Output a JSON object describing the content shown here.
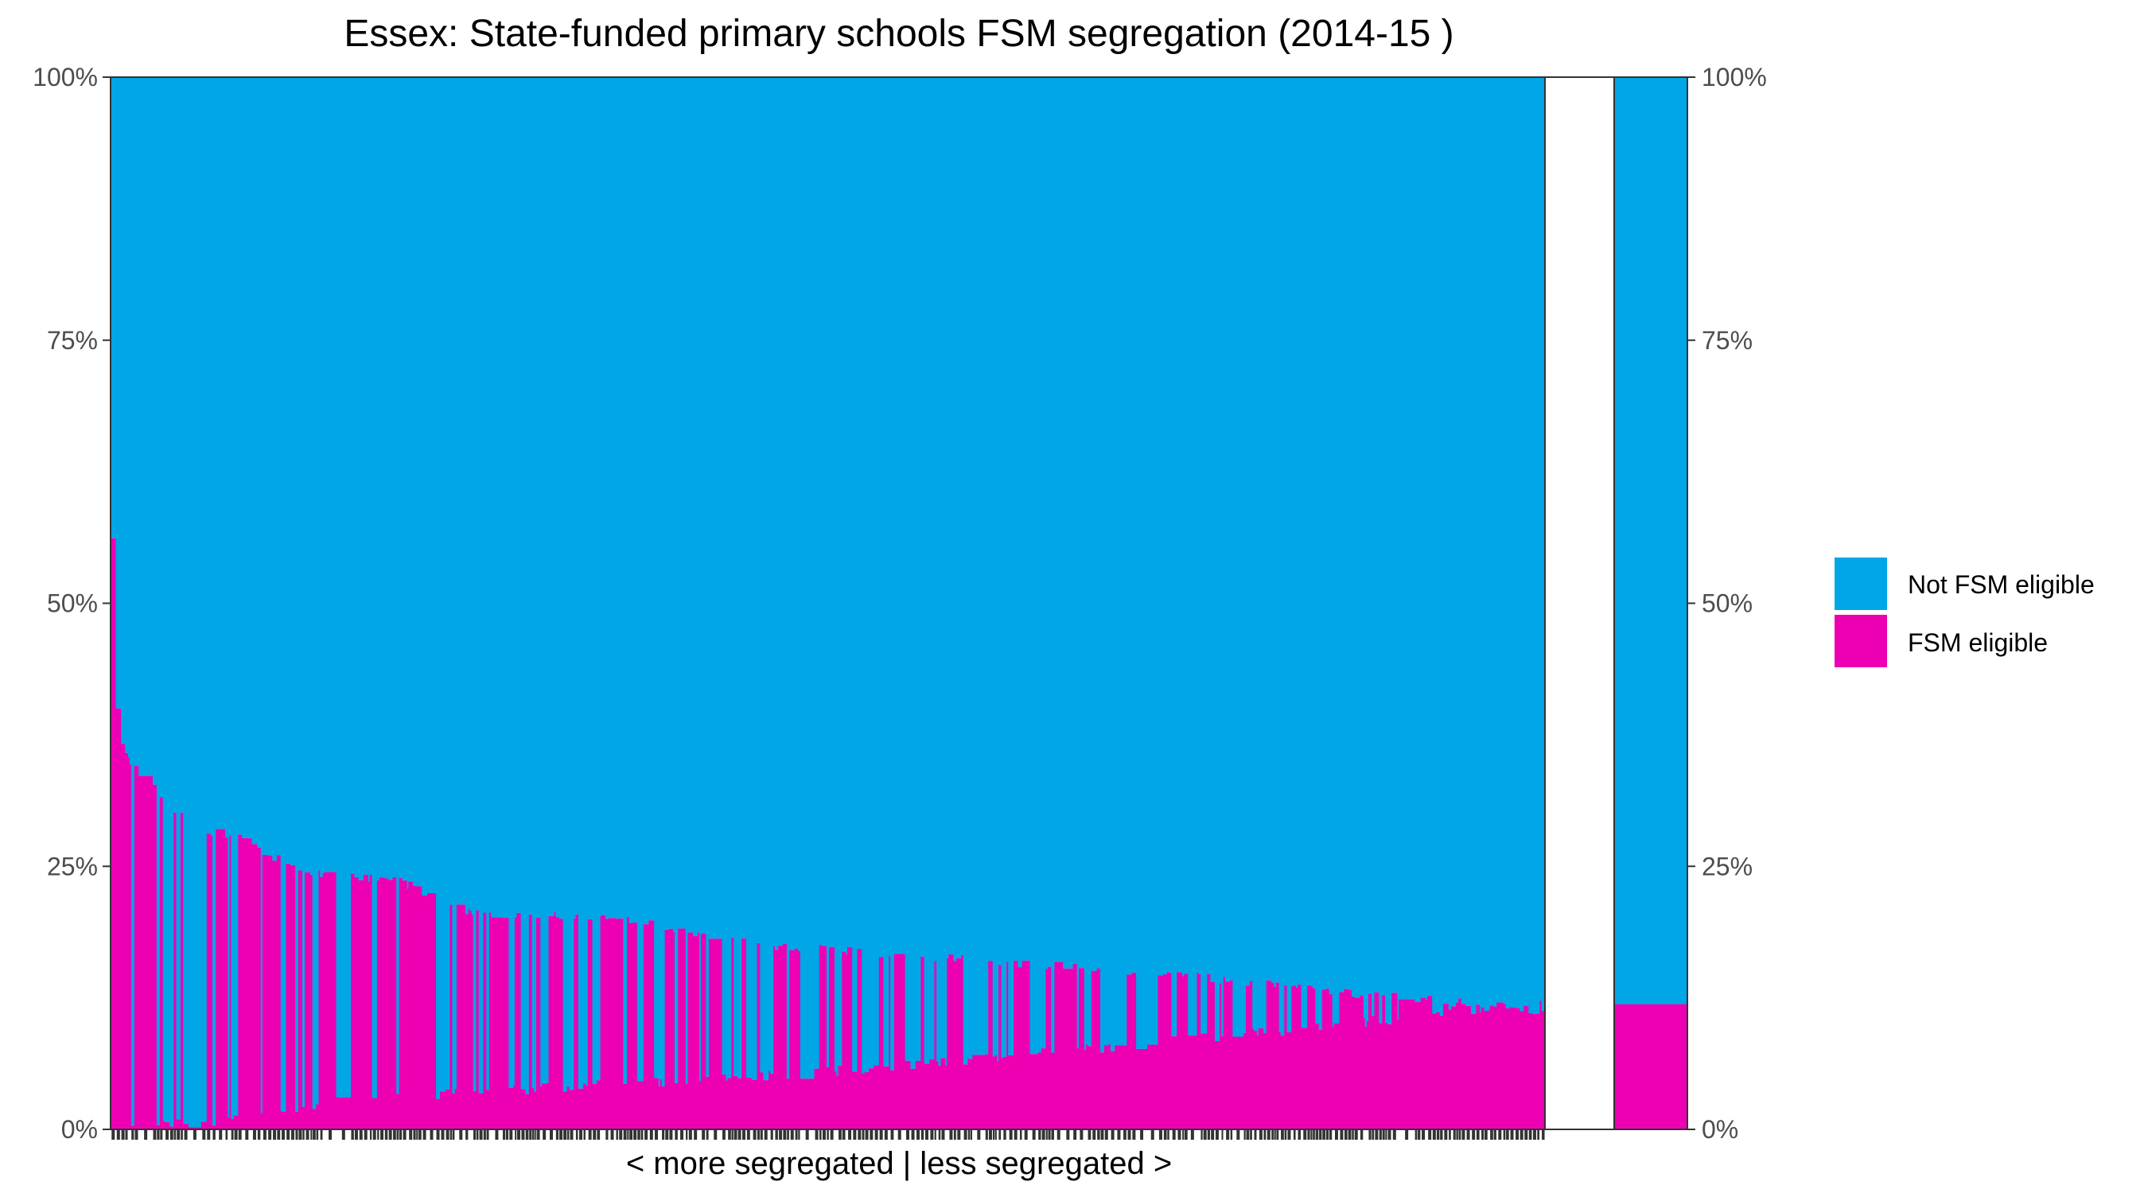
{
  "chart_data": {
    "type": "bar",
    "stacked": true,
    "title": "Essex: State-funded primary schools FSM segregation (2014-15 )",
    "xlabel": "< more segregated | less segregated >",
    "ylabel": "",
    "ylim": [
      0,
      1
    ],
    "y_tick_labels": [
      "0%",
      "25%",
      "50%",
      "75%",
      "100%"
    ],
    "y_ticks": [
      0,
      0.25,
      0.5,
      0.75,
      1.0
    ],
    "legend_position": "right",
    "series": [
      {
        "name": "Not FSM eligible",
        "color": "#00A6E6"
      },
      {
        "name": "FSM eligible",
        "color": "#EC00B2"
      }
    ],
    "profile_points": [
      [
        0,
        0.565
      ],
      [
        0.002,
        0.42
      ],
      [
        0.006,
        0.38
      ],
      [
        0.01,
        0.36
      ],
      [
        0.02,
        0.34
      ],
      [
        0.03,
        0.33
      ],
      [
        0.04,
        0.31
      ],
      [
        0.06,
        0.29
      ],
      [
        0.09,
        0.28
      ],
      [
        0.13,
        0.25
      ],
      [
        0.2,
        0.24
      ],
      [
        0.25,
        0.21
      ],
      [
        0.35,
        0.205
      ],
      [
        0.45,
        0.18
      ],
      [
        0.55,
        0.17
      ],
      [
        0.65,
        0.16
      ],
      [
        0.75,
        0.15
      ],
      [
        0.85,
        0.135
      ],
      [
        0.94,
        0.125
      ],
      [
        1.0,
        0.115
      ]
    ],
    "baseline_points": [
      [
        0,
        0.0
      ],
      [
        0.06,
        0.0
      ],
      [
        0.1,
        0.01
      ],
      [
        0.15,
        0.02
      ],
      [
        0.25,
        0.03
      ],
      [
        0.35,
        0.038
      ],
      [
        0.45,
        0.045
      ],
      [
        0.55,
        0.055
      ],
      [
        0.65,
        0.068
      ],
      [
        0.75,
        0.08
      ],
      [
        0.85,
        0.093
      ],
      [
        0.92,
        0.105
      ],
      [
        1.0,
        0.115
      ]
    ],
    "overall": {
      "FSM eligible": 0.119,
      "Not FSM eligible": 0.881
    }
  }
}
